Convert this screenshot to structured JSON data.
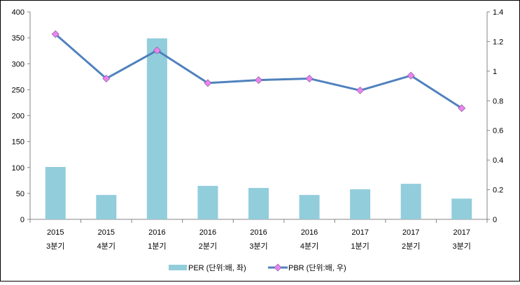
{
  "chart_data": {
    "type": "bar+line",
    "categories": [
      [
        "2015",
        "3분기"
      ],
      [
        "2015",
        "4분기"
      ],
      [
        "2016",
        "1분기"
      ],
      [
        "2016",
        "2분기"
      ],
      [
        "2016",
        "3분기"
      ],
      [
        "2016",
        "4분기"
      ],
      [
        "2017",
        "1분기"
      ],
      [
        "2017",
        "2분기"
      ],
      [
        "2017",
        "3분기"
      ]
    ],
    "series": [
      {
        "name": "PER (단위:배, 좌)",
        "type": "bar",
        "axis": "left",
        "color": "#92CDDC",
        "values": [
          101,
          47,
          349,
          64.5,
          60.5,
          47,
          58,
          68.5,
          40
        ]
      },
      {
        "name": "PBR (단위:배, 우)",
        "type": "line",
        "axis": "right",
        "color": "#4F81BD",
        "marker_color": "#EE82EE",
        "values": [
          1.25,
          0.95,
          1.14,
          0.92,
          0.94,
          0.95,
          0.87,
          0.97,
          0.75
        ]
      }
    ],
    "y_left": {
      "min": 0,
      "max": 400,
      "ticks": [
        "0",
        "50",
        "100",
        "150",
        "200",
        "250",
        "300",
        "350",
        "400"
      ]
    },
    "y_right": {
      "min": 0,
      "max": 1.4,
      "ticks": [
        "0",
        "0.2",
        "0.4",
        "0.6",
        "0.8",
        "1",
        "1.2",
        "1.4"
      ]
    },
    "grid": false,
    "legend_position": "bottom"
  }
}
